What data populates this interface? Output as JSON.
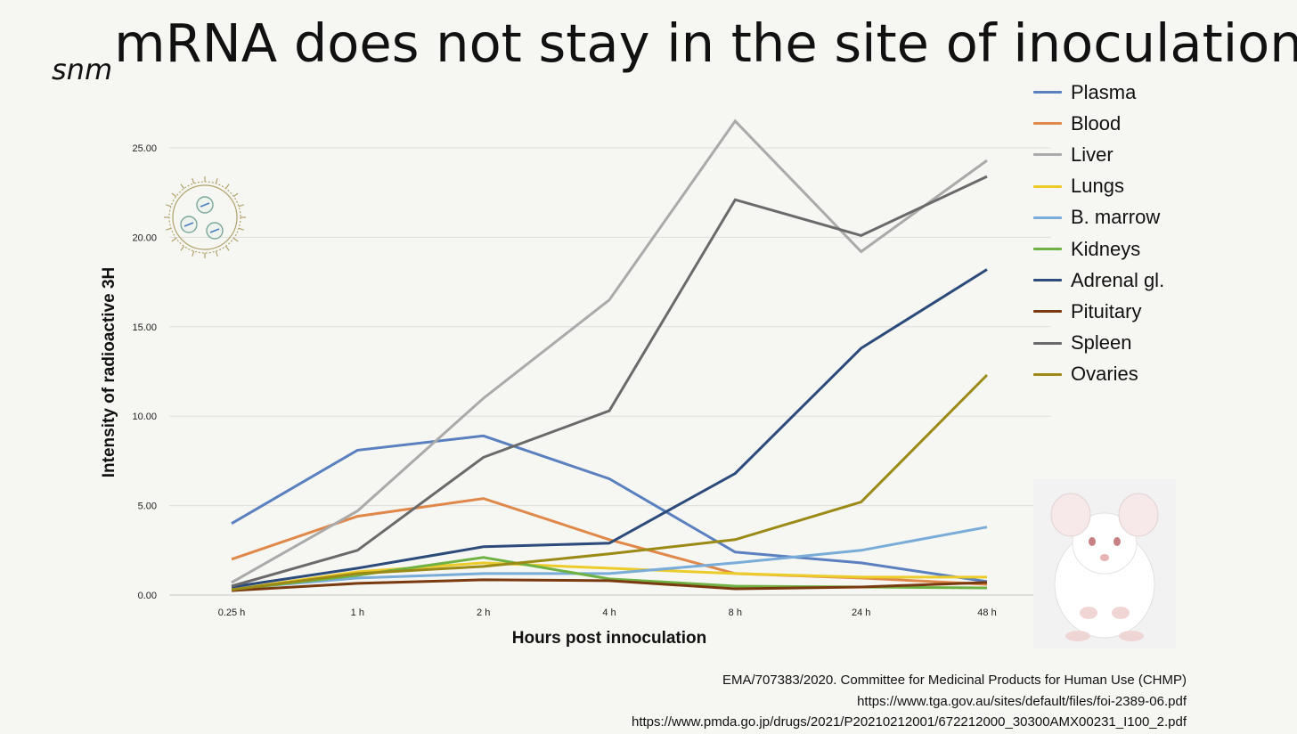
{
  "title": {
    "prefix": "snm",
    "main": "mRNA does not stay in the site of inoculation"
  },
  "chart_data": {
    "type": "line",
    "categories": [
      "0.25 h",
      "1 h",
      "2 h",
      "4 h",
      "8 h",
      "24 h",
      "48 h"
    ],
    "xlabel": "Hours post innoculation",
    "ylabel": "Intensity of radioactive 3H",
    "ylim": [
      0,
      25
    ],
    "yticks": [
      "0.00",
      "5.00",
      "10.00",
      "15.00",
      "20.00",
      "25.00"
    ],
    "grid": true,
    "legend_position": "right",
    "series": [
      {
        "name": "Plasma",
        "color": "#5b80bf",
        "values": [
          4.0,
          8.1,
          8.9,
          6.5,
          2.4,
          1.8,
          0.75
        ]
      },
      {
        "name": "Blood",
        "color": "#e0874a",
        "values": [
          2.0,
          4.4,
          5.4,
          3.1,
          1.2,
          0.95,
          0.6
        ]
      },
      {
        "name": "Liver",
        "color": "#aaaaaa",
        "values": [
          0.7,
          4.7,
          11.0,
          16.5,
          26.5,
          19.2,
          24.3
        ]
      },
      {
        "name": "Lungs",
        "color": "#eccc2a",
        "values": [
          0.3,
          1.3,
          1.8,
          1.5,
          1.2,
          1.0,
          1.0
        ]
      },
      {
        "name": "B. marrow",
        "color": "#79acd9",
        "values": [
          0.35,
          0.95,
          1.2,
          1.2,
          1.8,
          2.5,
          3.8
        ]
      },
      {
        "name": "Kidneys",
        "color": "#6fb243",
        "values": [
          0.3,
          1.1,
          2.1,
          0.9,
          0.5,
          0.45,
          0.4
        ]
      },
      {
        "name": "Adrenal gl.",
        "color": "#2c4a7a",
        "values": [
          0.45,
          1.5,
          2.7,
          2.9,
          6.8,
          13.8,
          18.2
        ]
      },
      {
        "name": "Pituitary",
        "color": "#7a3a10",
        "values": [
          0.25,
          0.65,
          0.85,
          0.8,
          0.35,
          0.45,
          0.7
        ]
      },
      {
        "name": "Spleen",
        "color": "#6a6a6a",
        "values": [
          0.5,
          2.5,
          7.7,
          10.3,
          22.1,
          20.1,
          23.4
        ]
      },
      {
        "name": "Ovaries",
        "color": "#9b8a16",
        "values": [
          0.3,
          1.2,
          1.6,
          2.3,
          3.1,
          5.2,
          12.3
        ]
      }
    ]
  },
  "sources": [
    "EMA/707383/2020. Committee for Medicinal Products for Human Use (CHMP)",
    "https://www.tga.gov.au/sites/default/files/foi-2389-06.pdf",
    "https://www.pmda.go.jp/drugs/2021/P20210212001/672212000_30300AMX00231_I100_2.pdf"
  ]
}
